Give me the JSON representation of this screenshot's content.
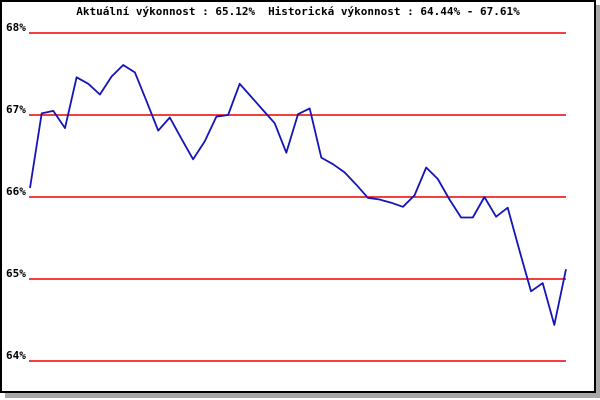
{
  "page": {
    "background": "#ffffff",
    "frame_border_color": "#000000",
    "frame_shadow_color": "#a8a8a8"
  },
  "header": {
    "current_performance": "Aktuální výkonnost : 65.12%",
    "historical_performance": "Historická výkonnost : 64.44% - 67.61%"
  },
  "chart_data": {
    "type": "line",
    "title": "Aktuální výkonnost : 65.12%  Historická výkonnost : 64.44% - 67.61%",
    "current_value_pct": 65.12,
    "historical_min_pct": 64.44,
    "historical_max_pct": 67.61,
    "xlabel": "",
    "ylabel": "",
    "x_axis_note": "unlabeled sample index, 47 points",
    "ylim": [
      63.6,
      68.4
    ],
    "grid": {
      "horizontal": true,
      "color": "#ee0000",
      "vertical": false
    },
    "legend": "none",
    "y_ticks": [
      {
        "label": "68%",
        "value": 68
      },
      {
        "label": "67%",
        "value": 67
      },
      {
        "label": "66%",
        "value": 66
      },
      {
        "label": "65%",
        "value": 65
      },
      {
        "label": "64%",
        "value": 64
      }
    ],
    "series": [
      {
        "name": "výkonnost",
        "color": "#1414b8",
        "values": [
          66.11,
          67.02,
          67.05,
          66.84,
          67.46,
          67.38,
          67.25,
          67.47,
          67.61,
          67.52,
          67.17,
          66.81,
          66.97,
          66.71,
          66.46,
          66.68,
          66.98,
          67.0,
          67.38,
          67.22,
          67.06,
          66.9,
          66.54,
          67.01,
          67.08,
          66.48,
          66.4,
          66.3,
          66.15,
          65.99,
          65.97,
          65.93,
          65.88,
          66.02,
          66.36,
          66.22,
          65.97,
          65.75,
          65.75,
          66.0,
          65.76,
          65.87,
          65.35,
          64.85,
          64.95,
          64.44,
          65.12
        ]
      }
    ]
  }
}
